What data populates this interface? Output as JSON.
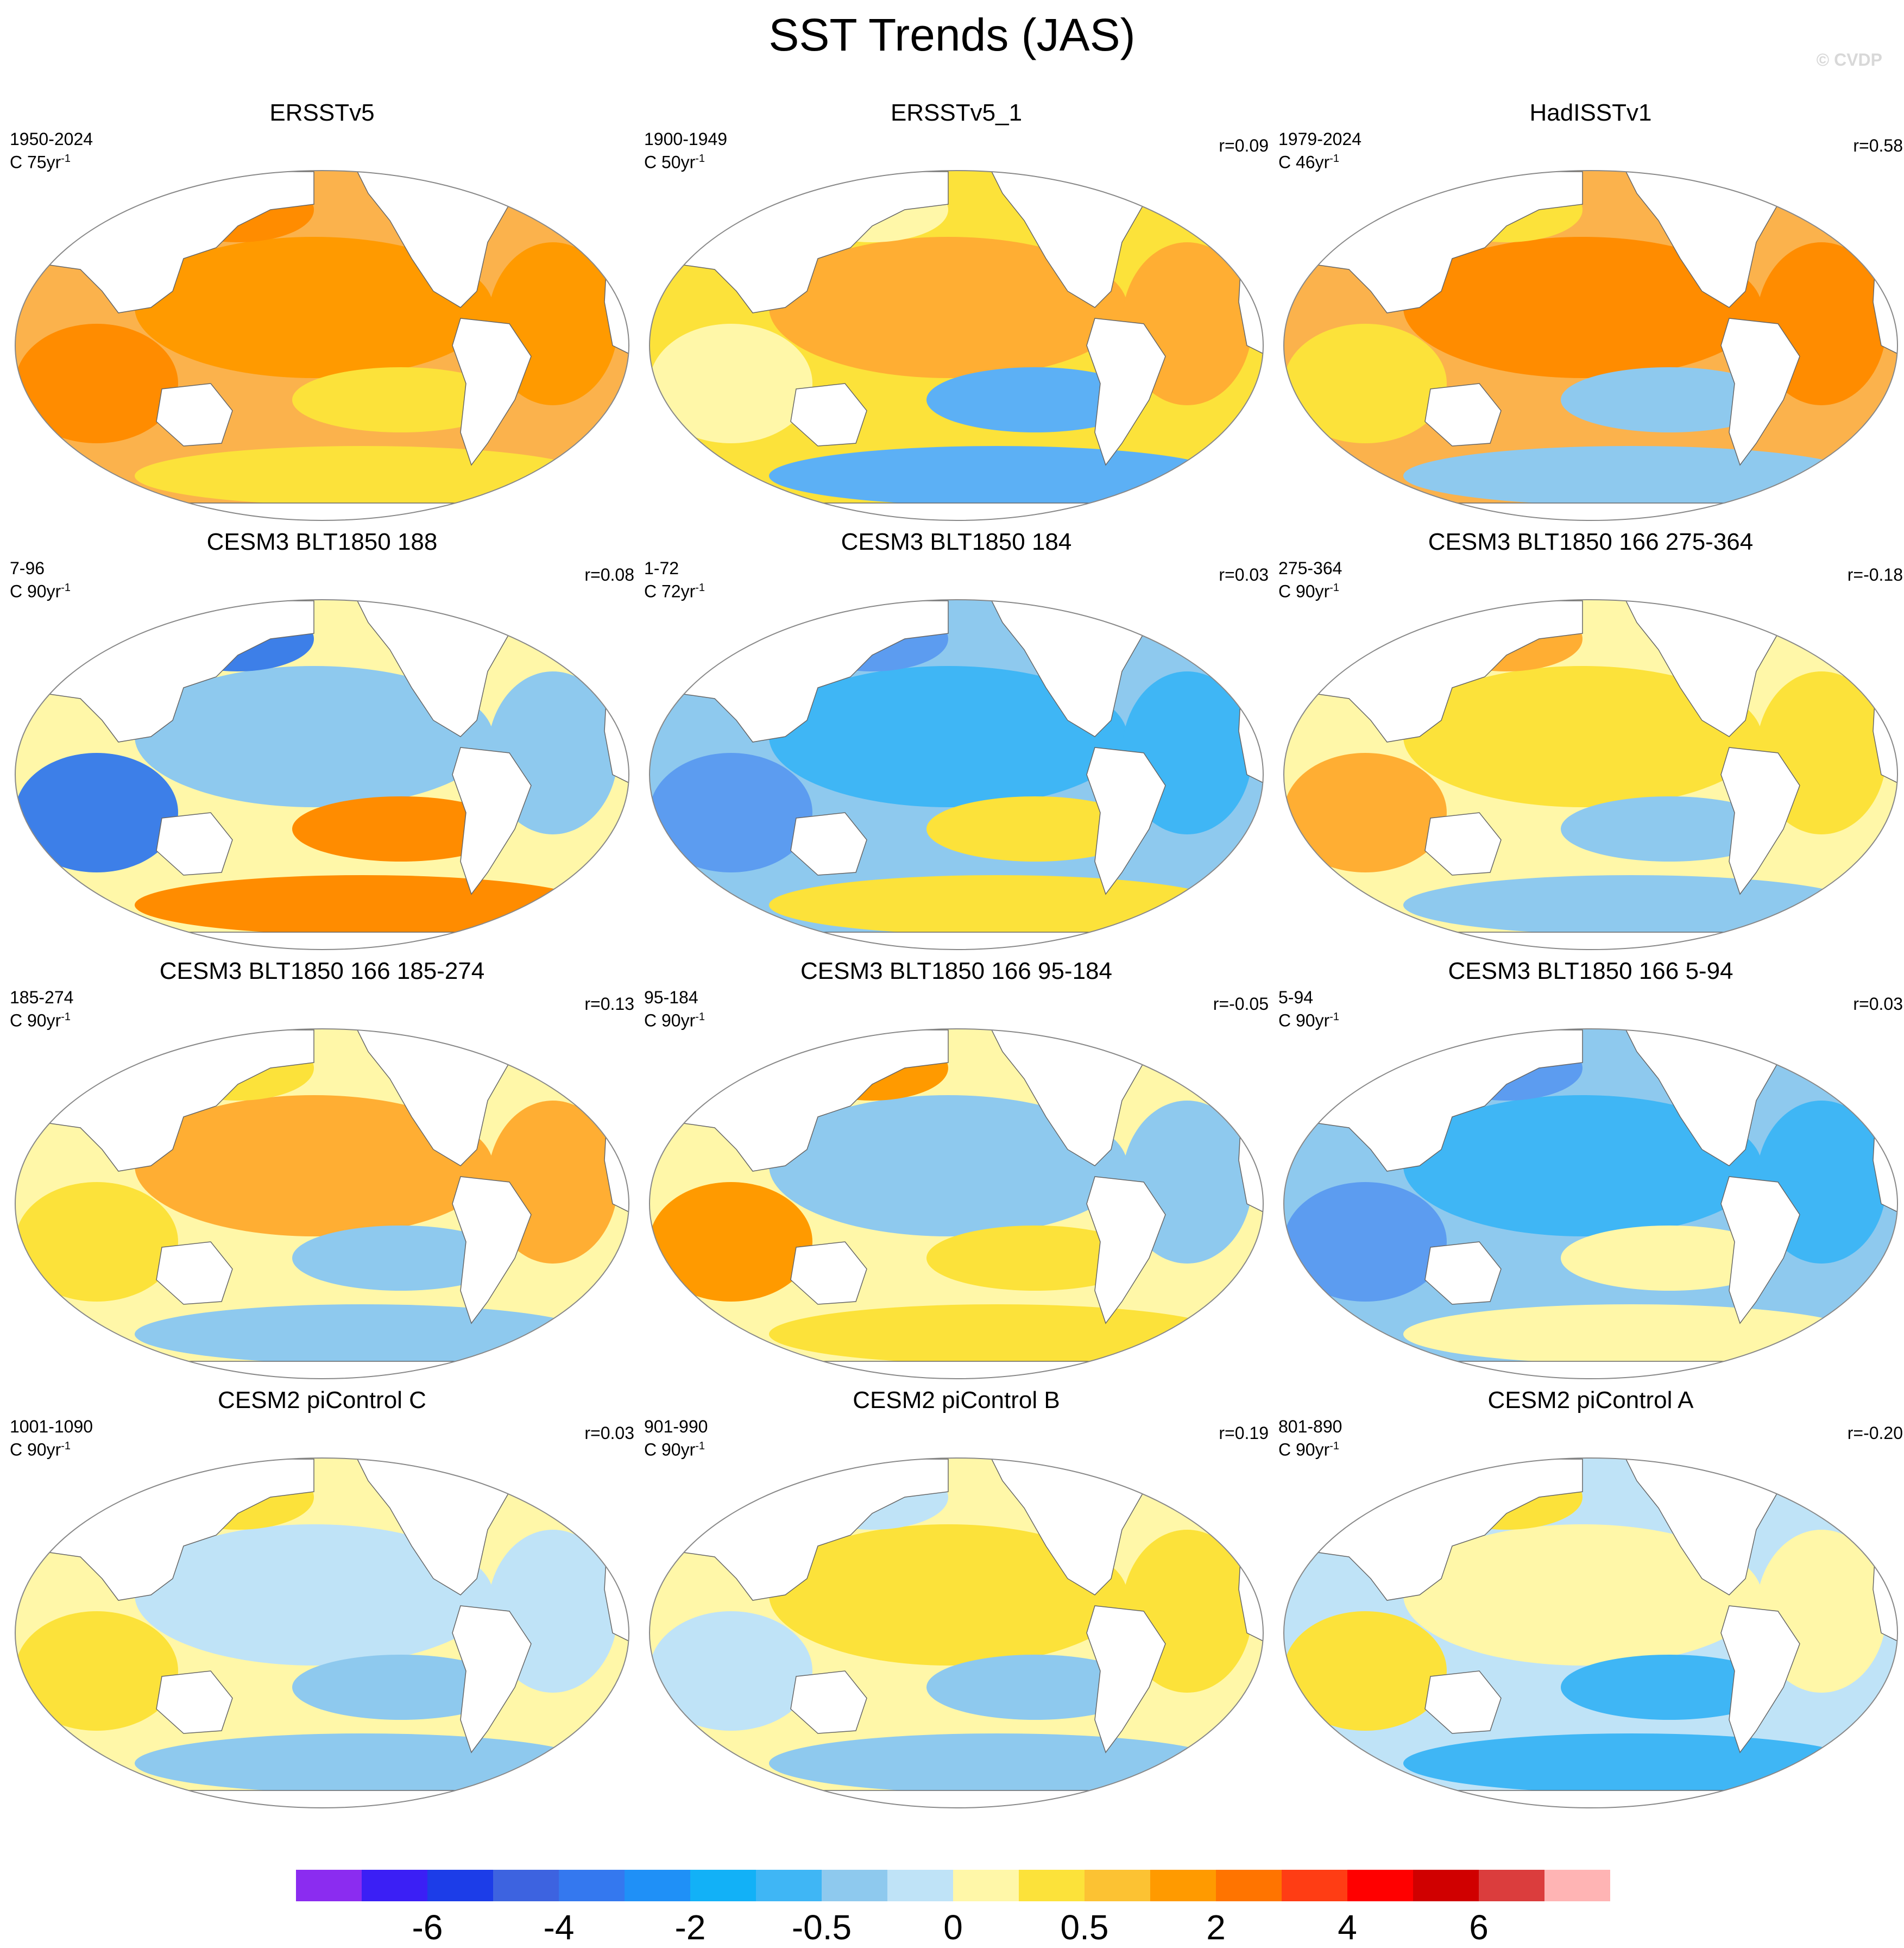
{
  "header": {
    "title": "SST Trends (JAS)",
    "watermark": "© CVDP"
  },
  "units": {
    "prefix_C": "C",
    "suffix": "yr",
    "exponent": "-1"
  },
  "panels": [
    {
      "title": "ERSSTv5",
      "period": "1950-2024",
      "years": "75",
      "r": "",
      "colors": {
        "base": "#fbb24c",
        "c1": "#ff9a00",
        "c2": "#fce23a",
        "c3": "#ff8c00"
      }
    },
    {
      "title": "ERSSTv5_1",
      "period": "1900-1949",
      "years": "50",
      "r": "r=0.09",
      "colors": {
        "base": "#fce23a",
        "c1": "#ffae33",
        "c2": "#5cb0f5",
        "c3": "#fff7a8"
      }
    },
    {
      "title": "HadISSTv1",
      "period": "1979-2024",
      "years": "46",
      "r": "r=0.58",
      "colors": {
        "base": "#fbb24c",
        "c1": "#ff8c00",
        "c2": "#8ec9ee",
        "c3": "#fce23a"
      }
    },
    {
      "title": "CESM3 BLT1850 188",
      "period": "7-96",
      "years": "90",
      "r": "r=0.08",
      "colors": {
        "base": "#fff7a8",
        "c1": "#8ec9ee",
        "c2": "#ff8c00",
        "c3": "#3d7fe8"
      }
    },
    {
      "title": "CESM3 BLT1850 184",
      "period": "1-72",
      "years": "72",
      "r": "r=0.03",
      "colors": {
        "base": "#8ec9ee",
        "c1": "#3fb6f5",
        "c2": "#fce23a",
        "c3": "#5c9cf0"
      }
    },
    {
      "title": "CESM3 BLT1850 166 275-364",
      "period": "275-364",
      "years": "90",
      "r": "r=-0.18",
      "colors": {
        "base": "#fff7a8",
        "c1": "#fce23a",
        "c2": "#8ec9ee",
        "c3": "#ffae33"
      }
    },
    {
      "title": "CESM3 BLT1850 166 185-274",
      "period": "185-274",
      "years": "90",
      "r": "r=0.13",
      "colors": {
        "base": "#fff7a8",
        "c1": "#ffae33",
        "c2": "#8ec9ee",
        "c3": "#fce23a"
      }
    },
    {
      "title": "CESM3 BLT1850 166 95-184",
      "period": "95-184",
      "years": "90",
      "r": "r=-0.05",
      "colors": {
        "base": "#fff7a8",
        "c1": "#8ec9ee",
        "c2": "#fce23a",
        "c3": "#ff9a00"
      }
    },
    {
      "title": "CESM3 BLT1850 166 5-94",
      "period": "5-94",
      "years": "90",
      "r": "r=0.03",
      "colors": {
        "base": "#8ec9ee",
        "c1": "#3fb6f5",
        "c2": "#fff7a8",
        "c3": "#5c9cf0"
      }
    },
    {
      "title": "CESM2 piControl C",
      "period": "1001-1090",
      "years": "90",
      "r": "r=0.03",
      "colors": {
        "base": "#fff7a8",
        "c1": "#bfe3f7",
        "c2": "#8ec9ee",
        "c3": "#fce23a"
      }
    },
    {
      "title": "CESM2 piControl B",
      "period": "901-990",
      "years": "90",
      "r": "r=0.19",
      "colors": {
        "base": "#fff7a8",
        "c1": "#fce23a",
        "c2": "#8ec9ee",
        "c3": "#bfe3f7"
      }
    },
    {
      "title": "CESM2 piControl A",
      "period": "801-890",
      "years": "90",
      "r": "r=-0.20",
      "colors": {
        "base": "#bfe3f7",
        "c1": "#fff7a8",
        "c2": "#3fb6f5",
        "c3": "#fce23a"
      }
    }
  ],
  "colorbar": {
    "colors": [
      "#8b2cf0",
      "#3b1ff5",
      "#1c3de8",
      "#3d63e0",
      "#3478ef",
      "#1f90f7",
      "#12b1f7",
      "#3fb6f5",
      "#8ec9ee",
      "#bfe3f7",
      "#fff7a8",
      "#fce23a",
      "#fcc233",
      "#ff9a00",
      "#ff7400",
      "#ff3d14",
      "#ff0000",
      "#d00000",
      "#db3d3d",
      "#ffb4b4"
    ],
    "labels": [
      "-6",
      "-4",
      "-2",
      "-0.5",
      "0",
      "0.5",
      "2",
      "4",
      "6"
    ]
  }
}
